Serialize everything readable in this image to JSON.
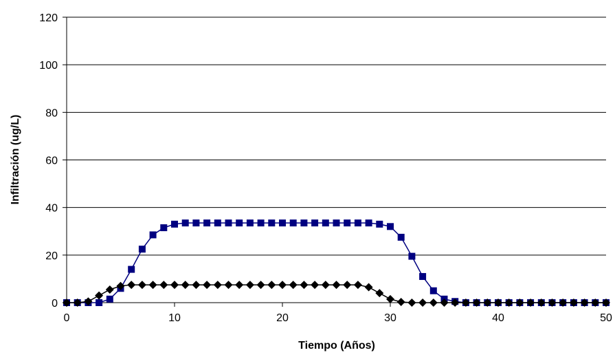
{
  "chart_data": {
    "type": "line",
    "title": "",
    "xlabel": "Tiempo (Años)",
    "ylabel": "Infiltración (ug/L)",
    "xlim": [
      0,
      50
    ],
    "ylim": [
      0,
      120
    ],
    "x_ticks": [
      "0",
      "10",
      "20",
      "30",
      "40",
      "50"
    ],
    "y_ticks": [
      "0",
      "20",
      "40",
      "60",
      "80",
      "100",
      "120"
    ],
    "grid": "horizontal",
    "legend": "none",
    "x": [
      0,
      1,
      2,
      3,
      4,
      5,
      6,
      7,
      8,
      9,
      10,
      11,
      12,
      13,
      14,
      15,
      16,
      17,
      18,
      19,
      20,
      21,
      22,
      23,
      24,
      25,
      26,
      27,
      28,
      29,
      30,
      31,
      32,
      33,
      34,
      35,
      36,
      37,
      38,
      39,
      40,
      41,
      42,
      43,
      44,
      45,
      46,
      47,
      48,
      49,
      50
    ],
    "series": [
      {
        "marker": "square",
        "color": "#000080",
        "values": [
          0,
          0,
          0,
          0,
          1.5,
          6,
          14,
          22.5,
          28.5,
          31.5,
          33,
          33.5,
          33.5,
          33.5,
          33.5,
          33.5,
          33.5,
          33.5,
          33.5,
          33.5,
          33.5,
          33.5,
          33.5,
          33.5,
          33.5,
          33.5,
          33.5,
          33.5,
          33.5,
          33,
          32,
          27.5,
          19.5,
          11,
          5,
          1.5,
          0.5,
          0,
          0,
          0,
          0,
          0,
          0,
          0,
          0,
          0,
          0,
          0,
          0,
          0,
          0
        ]
      },
      {
        "marker": "diamond",
        "color": "#000000",
        "values": [
          0,
          0,
          0.5,
          3,
          5.5,
          7,
          7.5,
          7.5,
          7.5,
          7.5,
          7.5,
          7.5,
          7.5,
          7.5,
          7.5,
          7.5,
          7.5,
          7.5,
          7.5,
          7.5,
          7.5,
          7.5,
          7.5,
          7.5,
          7.5,
          7.5,
          7.5,
          7.5,
          6.5,
          4,
          1.5,
          0.3,
          0,
          0,
          0,
          0,
          0,
          0,
          0,
          0,
          0,
          0,
          0,
          0,
          0,
          0,
          0,
          0,
          0,
          0,
          0
        ]
      }
    ]
  }
}
